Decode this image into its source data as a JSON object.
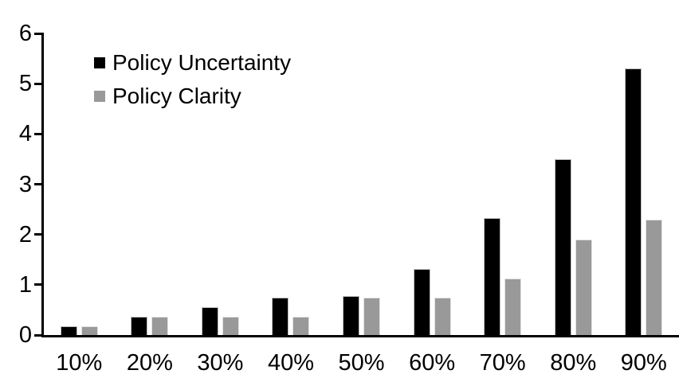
{
  "chart_data": {
    "type": "bar",
    "title": "",
    "xlabel": "",
    "ylabel": "",
    "categories": [
      "10%",
      "20%",
      "30%",
      "40%",
      "50%",
      "60%",
      "70%",
      "80%",
      "90%"
    ],
    "series": [
      {
        "name": "Policy Uncertainty",
        "color": "#000000",
        "values": [
          0.18,
          0.37,
          0.55,
          0.75,
          0.77,
          1.32,
          2.33,
          3.5,
          5.3
        ]
      },
      {
        "name": "Policy Clarity",
        "color": "#999999",
        "values": [
          0.18,
          0.37,
          0.37,
          0.37,
          0.75,
          0.75,
          1.13,
          1.9,
          2.3
        ]
      }
    ],
    "ylim": [
      0,
      6
    ],
    "yticks": [
      "0",
      "1",
      "2",
      "3",
      "4",
      "5",
      "6"
    ],
    "grid": false,
    "legend_position": "top-left",
    "axis_color": "#000000",
    "background_color": "#ffffff"
  }
}
